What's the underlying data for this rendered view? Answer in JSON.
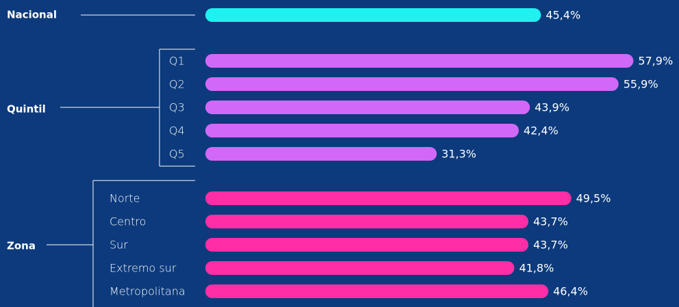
{
  "chart_data": {
    "type": "bar",
    "groups": [
      {
        "name": "Nacional",
        "color": "#1ff0f0",
        "categories": [
          null
        ],
        "values": [
          45.4
        ],
        "value_labels": [
          "45,4%"
        ]
      },
      {
        "name": "Quintil",
        "color": "#d268f7",
        "categories": [
          "Q1",
          "Q2",
          "Q3",
          "Q4",
          "Q5"
        ],
        "values": [
          57.9,
          55.9,
          43.9,
          42.4,
          31.3
        ],
        "value_labels": [
          "57,9%",
          "55,9%",
          "43,9%",
          "42,4%",
          "31,3%"
        ]
      },
      {
        "name": "Zona",
        "color": "#ff2ea6",
        "categories": [
          "Norte",
          "Centro",
          "Sur",
          "Extremo sur",
          "Metropolitana"
        ],
        "values": [
          49.5,
          43.7,
          43.7,
          41.8,
          46.4
        ],
        "value_labels": [
          "49,5%",
          "43,7%",
          "43,7%",
          "41,8%",
          "46,4%"
        ]
      }
    ]
  }
}
